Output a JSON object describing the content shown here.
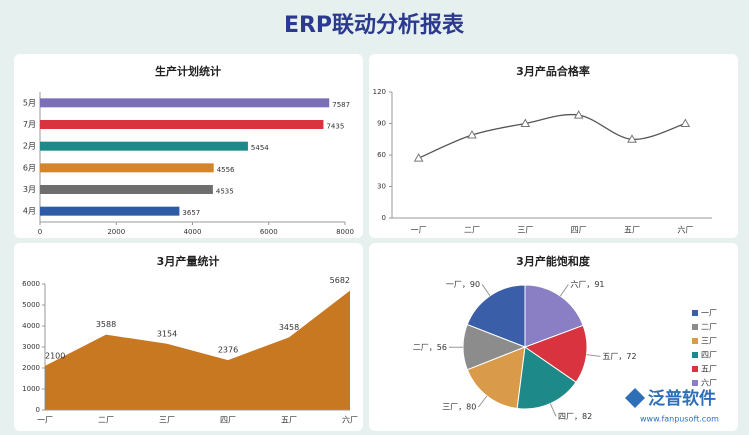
{
  "title": "ERP联动分析报表",
  "chart_data": [
    {
      "type": "hbar",
      "title": "生产计划统计",
      "categories": [
        "5月",
        "7月",
        "2月",
        "6月",
        "3月",
        "4月"
      ],
      "values": [
        7587,
        7435,
        5454,
        4556,
        4535,
        3657
      ],
      "colors": [
        "#7b70b8",
        "#d8333f",
        "#1d8a89",
        "#d4852a",
        "#6e6e6e",
        "#2f5ba6"
      ],
      "xlim": [
        0,
        8000
      ],
      "xticks": [
        0,
        2000,
        4000,
        6000,
        8000
      ]
    },
    {
      "type": "line",
      "title": "3月产品合格率",
      "categories": [
        "一厂",
        "二厂",
        "三厂",
        "四厂",
        "五厂",
        "六厂"
      ],
      "values": [
        57,
        79,
        90,
        98,
        75,
        90
      ],
      "color": "#555555",
      "ylim": [
        0,
        120
      ],
      "yticks": [
        0,
        30,
        60,
        90,
        120
      ]
    },
    {
      "type": "area",
      "title": "3月产量统计",
      "categories": [
        "一厂",
        "二厂",
        "三厂",
        "四厂",
        "五厂",
        "六厂"
      ],
      "values": [
        2100,
        3588,
        3154,
        2376,
        3458,
        5682
      ],
      "color": "#c87820",
      "ylim": [
        0,
        6000
      ],
      "yticks": [
        0,
        1000,
        2000,
        3000,
        4000,
        5000,
        6000
      ]
    },
    {
      "type": "pie",
      "title": "3月产能饱和度",
      "categories": [
        "一厂",
        "二厂",
        "三厂",
        "四厂",
        "五厂",
        "六厂"
      ],
      "values": [
        90,
        56,
        80,
        82,
        72,
        91
      ],
      "value_labels": [
        "一厂，90",
        "二厂，56",
        "三厂，80",
        "四厂，82",
        "五厂，72",
        "六厂，91"
      ],
      "colors": [
        "#3a5ea8",
        "#8c8c8c",
        "#d99a4a",
        "#1d8a89",
        "#d8333f",
        "#8a7ec4"
      ],
      "legend": "right"
    }
  ],
  "watermark": {
    "brand": "泛普软件",
    "url": "www.fanpusoft.com"
  }
}
